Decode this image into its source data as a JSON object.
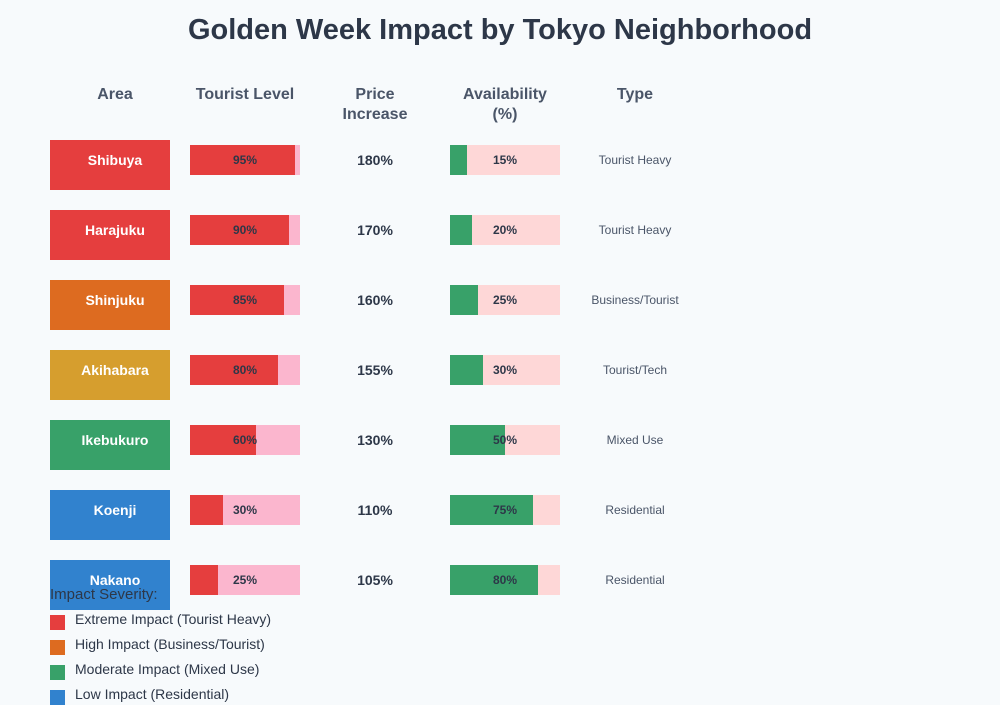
{
  "chart_data": {
    "type": "table",
    "title": "Golden Week Impact by Tokyo Neighborhood",
    "headers": [
      "Area",
      "Tourist Level",
      "Price Increase",
      "Availability (%)",
      "Type"
    ],
    "rows": [
      {
        "area": "Shibuya",
        "color": "#e53e3e",
        "tourist": 95,
        "tourist_label": "95%",
        "price": "180%",
        "availability": 15,
        "availability_label": "15%",
        "type": "Tourist Heavy"
      },
      {
        "area": "Harajuku",
        "color": "#e53e3e",
        "tourist": 90,
        "tourist_label": "90%",
        "price": "170%",
        "availability": 20,
        "availability_label": "20%",
        "type": "Tourist Heavy"
      },
      {
        "area": "Shinjuku",
        "color": "#dd6b20",
        "tourist": 85,
        "tourist_label": "85%",
        "price": "160%",
        "availability": 25,
        "availability_label": "25%",
        "type": "Business/Tourist"
      },
      {
        "area": "Akihabara",
        "color": "#d69e2e",
        "tourist": 80,
        "tourist_label": "80%",
        "price": "155%",
        "availability": 30,
        "availability_label": "30%",
        "type": "Tourist/Tech"
      },
      {
        "area": "Ikebukuro",
        "color": "#38a169",
        "tourist": 60,
        "tourist_label": "60%",
        "price": "130%",
        "availability": 50,
        "availability_label": "50%",
        "type": "Mixed Use"
      },
      {
        "area": "Koenji",
        "color": "#3182ce",
        "tourist": 30,
        "tourist_label": "30%",
        "price": "110%",
        "availability": 75,
        "availability_label": "75%",
        "type": "Residential"
      },
      {
        "area": "Nakano",
        "color": "#3182ce",
        "tourist": 25,
        "tourist_label": "25%",
        "price": "105%",
        "availability": 80,
        "availability_label": "80%",
        "type": "Residential"
      }
    ],
    "colors": {
      "tourist_fill": "#e53e3e",
      "tourist_track": "#fbb6ce",
      "avail_fill": "#38a169",
      "avail_track": "#fed7d7"
    },
    "legend": {
      "title": "Impact Severity:",
      "items": [
        {
          "label": "Extreme Impact (Tourist Heavy)",
          "color": "#e53e3e"
        },
        {
          "label": "High Impact (Business/Tourist)",
          "color": "#dd6b20"
        },
        {
          "label": "Moderate Impact (Mixed Use)",
          "color": "#38a169"
        },
        {
          "label": "Low Impact (Residential)",
          "color": "#3182ce"
        }
      ]
    }
  }
}
